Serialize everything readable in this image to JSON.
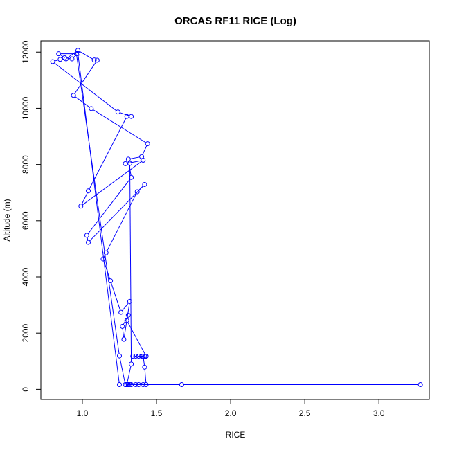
{
  "chart_data": {
    "type": "line",
    "title": "ORCAS RF11 RICE (Log)",
    "xlabel": "RICE",
    "ylabel": "Altitude (m)",
    "xlim": [
      0.72,
      3.34
    ],
    "ylim": [
      -360,
      12400
    ],
    "xticks": [
      1.0,
      1.5,
      2.0,
      2.5,
      3.0
    ],
    "xtick_labels": [
      "1.0",
      "1.5",
      "2.0",
      "2.5",
      "3.0"
    ],
    "yticks": [
      0,
      2000,
      4000,
      6000,
      8000,
      10000,
      12000
    ],
    "ytick_labels": [
      "0",
      "2000",
      "4000",
      "6000",
      "8000",
      "10000",
      "12000"
    ],
    "grid": false,
    "series": [
      {
        "color": "#0000ff",
        "marker": "open-circle",
        "x": [
          3.28,
          1.67,
          1.3,
          1.31,
          1.32,
          1.29,
          1.33,
          1.36,
          1.38,
          1.41,
          1.43,
          1.42,
          1.41,
          1.43,
          1.4,
          1.38,
          1.34,
          1.36,
          1.42,
          1.43,
          1.3,
          1.31,
          1.27,
          1.28,
          1.32,
          1.26,
          1.19,
          1.14,
          1.16,
          1.37,
          1.42,
          1.04,
          1.03,
          1.33,
          1.31,
          1.4,
          1.44,
          1.06,
          0.94,
          1.1,
          1.08,
          0.97,
          0.89,
          0.85,
          0.8,
          1.24,
          1.33,
          1.3,
          1.04,
          0.99,
          1.41,
          1.29,
          1.32,
          1.33,
          1.3,
          1.31,
          1.29,
          1.25,
          0.96,
          0.84,
          0.88,
          0.93,
          0.97,
          1.25
        ],
        "y": [
          170,
          170,
          170,
          170,
          170,
          170,
          170,
          170,
          170,
          170,
          170,
          790,
          1180,
          1180,
          1180,
          1180,
          1180,
          1180,
          1180,
          1180,
          2450,
          2640,
          2240,
          1780,
          3130,
          2740,
          3860,
          4640,
          4860,
          7030,
          7290,
          5230,
          5480,
          7540,
          8190,
          8280,
          8740,
          9990,
          10460,
          11710,
          11720,
          12060,
          11760,
          11740,
          11660,
          9870,
          9710,
          9710,
          7060,
          6520,
          8150,
          8030,
          8040,
          900,
          170,
          170,
          170,
          1190,
          11940,
          11940,
          11800,
          11760,
          11950,
          170
        ]
      }
    ]
  }
}
